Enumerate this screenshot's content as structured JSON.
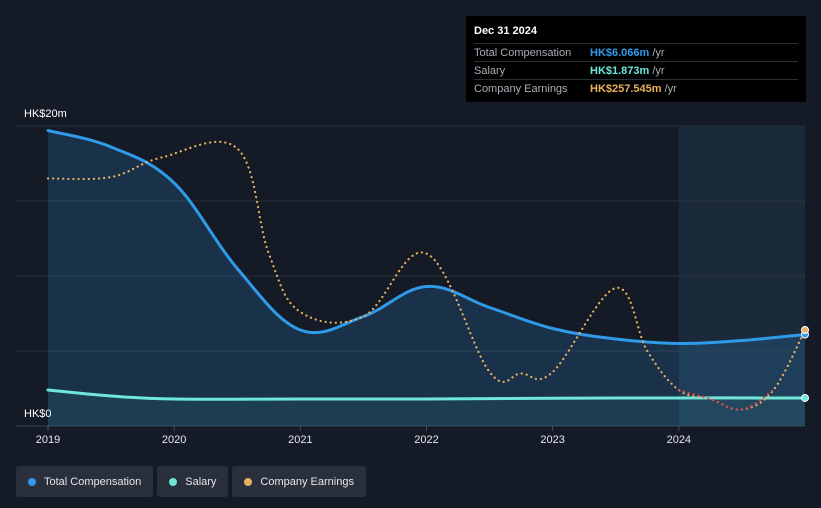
{
  "tooltip": {
    "date": "Dec 31 2024",
    "rows": [
      {
        "label": "Total Compensation",
        "value": "HK$6.066m",
        "unit": "/yr",
        "color": "#2f9ae8"
      },
      {
        "label": "Salary",
        "value": "HK$1.873m",
        "unit": "/yr",
        "color": "#6ee7d8"
      },
      {
        "label": "Company Earnings",
        "value": "HK$257.545m",
        "unit": "/yr",
        "color": "#e8b15e"
      }
    ]
  },
  "legend": [
    {
      "label": "Total Compensation",
      "color": "#2f9ae8"
    },
    {
      "label": "Salary",
      "color": "#6ee7d8"
    },
    {
      "label": "Company Earnings",
      "color": "#e8b15e"
    }
  ],
  "chart_data": {
    "type": "line",
    "x_ticks": [
      "2019",
      "2020",
      "2021",
      "2022",
      "2023",
      "2024"
    ],
    "y_ticks": [
      "HK$0",
      "HK$20m"
    ],
    "ylim": [
      0,
      20
    ],
    "xlim": [
      2019.0,
      2025.0
    ],
    "grid": true,
    "highlight_from": 2024.0,
    "series": [
      {
        "name": "Total Compensation",
        "color": "#2f9ae8",
        "style": "solid",
        "fill": true,
        "points": [
          [
            2019.0,
            19.7
          ],
          [
            2019.5,
            18.6
          ],
          [
            2020.0,
            16.2
          ],
          [
            2020.5,
            10.5
          ],
          [
            2021.0,
            6.4
          ],
          [
            2021.5,
            7.3
          ],
          [
            2022.0,
            9.3
          ],
          [
            2022.5,
            7.9
          ],
          [
            2023.0,
            6.5
          ],
          [
            2023.5,
            5.8
          ],
          [
            2024.0,
            5.5
          ],
          [
            2024.5,
            5.7
          ],
          [
            2025.0,
            6.1
          ]
        ]
      },
      {
        "name": "Salary",
        "color": "#6ee7d8",
        "style": "solid",
        "fill": false,
        "points": [
          [
            2019.0,
            2.4
          ],
          [
            2019.5,
            2.0
          ],
          [
            2020.0,
            1.8
          ],
          [
            2021.0,
            1.8
          ],
          [
            2022.0,
            1.8
          ],
          [
            2023.0,
            1.85
          ],
          [
            2024.0,
            1.87
          ],
          [
            2025.0,
            1.87
          ]
        ]
      },
      {
        "name": "Company Earnings",
        "color": "#e8b15e",
        "style": "dotted",
        "fill": false,
        "points": [
          [
            2019.0,
            16.5
          ],
          [
            2019.5,
            16.6
          ],
          [
            2019.9,
            17.9
          ],
          [
            2020.5,
            18.5
          ],
          [
            2020.75,
            11.5
          ],
          [
            2021.0,
            7.6
          ],
          [
            2021.5,
            7.3
          ],
          [
            2022.0,
            11.5
          ],
          [
            2022.5,
            3.6
          ],
          [
            2022.75,
            3.5
          ],
          [
            2023.0,
            3.6
          ],
          [
            2023.5,
            9.2
          ],
          [
            2023.75,
            5.0
          ],
          [
            2024.0,
            2.4
          ],
          [
            2024.25,
            1.8
          ],
          [
            2024.5,
            1.1
          ],
          [
            2024.75,
            2.4
          ],
          [
            2025.0,
            6.4
          ]
        ],
        "negative_color": "#e0435a"
      }
    ]
  }
}
